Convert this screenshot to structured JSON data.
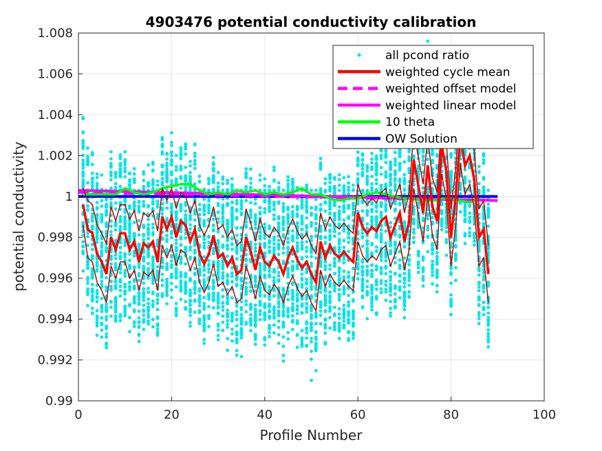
{
  "chart_data": {
    "type": "line",
    "title": "4903476 potential conductivity calibration",
    "xlabel": "Profile Number",
    "ylabel": "potential conductivity",
    "xlim": [
      0,
      100
    ],
    "ylim": [
      0.99,
      1.008
    ],
    "xticks": [
      0,
      20,
      40,
      60,
      80,
      100
    ],
    "xtick_labels": [
      "0",
      "20",
      "40",
      "60",
      "80",
      "100"
    ],
    "yticks": [
      0.99,
      0.992,
      0.994,
      0.996,
      0.998,
      1.0,
      1.002,
      1.004,
      1.006,
      1.008
    ],
    "ytick_labels": [
      "0.99",
      "0.992",
      "0.994",
      "0.996",
      "0.998",
      "1",
      "1.002",
      "1.004",
      "1.006",
      "1.008"
    ],
    "grid": true,
    "legend_position": "top-right",
    "colors": {
      "scatter": "#00e5e5",
      "cycle_mean": "#ff0000",
      "envelope": "#c00000",
      "offset_model": "#ff00ff",
      "linear_model": "#ff00ff",
      "theta": "#00ff00",
      "ow_solution": "#0000ff",
      "text": "#000000",
      "axes": "#262626",
      "grid": "#e6e6e6"
    },
    "legend": [
      {
        "key": "scatter",
        "label": "all pcond ratio",
        "style": "dot",
        "color": "#00e5e5"
      },
      {
        "key": "cycle_mean",
        "label": "weighted cycle mean",
        "style": "solid",
        "color": "#ff0000"
      },
      {
        "key": "offset_model",
        "label": "weighted offset model",
        "style": "dashed",
        "color": "#ff00ff"
      },
      {
        "key": "linear_model",
        "label": "weighted linear model",
        "style": "solid",
        "color": "#ff00ff"
      },
      {
        "key": "theta",
        "label": "10 theta",
        "style": "solid",
        "color": "#00ff00"
      },
      {
        "key": "ow_solution",
        "label": "OW Solution",
        "style": "solid",
        "color": "#0000ff"
      }
    ],
    "profiles": [
      1,
      2,
      3,
      4,
      5,
      6,
      7,
      8,
      9,
      10,
      11,
      12,
      13,
      14,
      15,
      16,
      17,
      18,
      19,
      20,
      21,
      22,
      23,
      24,
      25,
      26,
      27,
      28,
      29,
      30,
      31,
      32,
      33,
      34,
      35,
      36,
      37,
      38,
      39,
      40,
      41,
      42,
      43,
      44,
      45,
      46,
      47,
      48,
      49,
      50,
      51,
      52,
      53,
      54,
      55,
      56,
      57,
      58,
      59,
      60,
      61,
      62,
      63,
      64,
      65,
      66,
      67,
      68,
      69,
      70,
      71,
      72,
      73,
      74,
      75,
      76,
      77,
      78,
      79,
      80,
      81,
      82,
      83,
      84,
      85,
      86,
      87,
      88
    ],
    "series": [
      {
        "name": "weighted cycle mean",
        "values": [
          0.9996,
          0.9984,
          0.9982,
          0.9972,
          0.9968,
          0.9962,
          0.998,
          0.9974,
          0.9982,
          0.9982,
          0.9974,
          0.9978,
          0.9968,
          0.9977,
          0.9975,
          0.9978,
          0.9968,
          0.999,
          0.9984,
          0.999,
          0.998,
          0.9988,
          0.9986,
          0.9978,
          0.9984,
          0.9972,
          0.9967,
          0.9972,
          0.9981,
          0.997,
          0.9972,
          0.9966,
          0.997,
          0.9962,
          0.9964,
          0.998,
          0.9973,
          0.9964,
          0.9975,
          0.9968,
          0.9966,
          0.9971,
          0.9968,
          0.9962,
          0.997,
          0.9975,
          0.9969,
          0.9965,
          0.9968,
          0.9962,
          0.9958,
          0.9978,
          0.997,
          0.9976,
          0.9972,
          0.997,
          0.9973,
          0.997,
          0.9968,
          0.9992,
          0.9985,
          0.9982,
          0.9985,
          0.9983,
          0.9988,
          0.999,
          0.998,
          0.9986,
          0.9992,
          0.9978,
          0.9988,
          1.0018,
          1.0005,
          0.9992,
          1.0015,
          0.9995,
          0.9988,
          1.0025,
          1.0012,
          0.998,
          1.0,
          1.003,
          1.0015,
          1.002,
          1.0008,
          0.998,
          0.9984,
          0.9962
        ]
      },
      {
        "name": "cycle mean upper bound",
        "values": [
          1.0004,
          0.9998,
          0.9996,
          0.9986,
          0.9982,
          0.9977,
          0.9995,
          0.9988,
          0.9996,
          0.9996,
          0.9989,
          0.9993,
          0.9983,
          0.9992,
          0.999,
          0.9993,
          0.9983,
          1.0004,
          0.9998,
          1.0004,
          0.9994,
          1.0002,
          1.0,
          0.9992,
          0.9998,
          0.9986,
          0.9981,
          0.9986,
          0.9995,
          0.9984,
          0.9986,
          0.998,
          0.9984,
          0.9976,
          0.9978,
          0.9994,
          0.9987,
          0.9978,
          0.9989,
          0.9982,
          0.998,
          0.9985,
          0.9982,
          0.9976,
          0.9984,
          0.9989,
          0.9983,
          0.9979,
          0.9982,
          0.9976,
          0.9972,
          0.9992,
          0.9984,
          0.999,
          0.9986,
          0.9984,
          0.9987,
          0.9984,
          0.9982,
          1.0006,
          0.9999,
          0.9996,
          0.9999,
          0.9997,
          1.0002,
          1.0004,
          0.9994,
          1.0,
          1.0006,
          0.9992,
          1.0002,
          1.0032,
          1.0019,
          1.0006,
          1.0029,
          1.0009,
          1.0002,
          1.0039,
          1.0026,
          0.9994,
          1.0014,
          1.0044,
          1.0029,
          1.0034,
          1.0022,
          0.9994,
          0.9998,
          0.9976
        ]
      },
      {
        "name": "cycle mean lower bound",
        "values": [
          0.9986,
          0.997,
          0.9968,
          0.9958,
          0.9954,
          0.9948,
          0.9966,
          0.996,
          0.9968,
          0.9968,
          0.996,
          0.9964,
          0.9954,
          0.9963,
          0.9961,
          0.9964,
          0.9954,
          0.9976,
          0.997,
          0.9976,
          0.9966,
          0.9974,
          0.9972,
          0.9964,
          0.997,
          0.9958,
          0.9953,
          0.9958,
          0.9967,
          0.9956,
          0.9958,
          0.9952,
          0.9956,
          0.9948,
          0.995,
          0.9966,
          0.9959,
          0.995,
          0.9961,
          0.9954,
          0.9952,
          0.9957,
          0.9954,
          0.9948,
          0.9956,
          0.9961,
          0.9955,
          0.9951,
          0.9954,
          0.9948,
          0.9944,
          0.9964,
          0.9956,
          0.9962,
          0.9958,
          0.9956,
          0.9959,
          0.9956,
          0.9954,
          0.9978,
          0.9971,
          0.9968,
          0.9971,
          0.9969,
          0.9974,
          0.9976,
          0.9966,
          0.9972,
          0.9978,
          0.9964,
          0.9974,
          1.0004,
          0.9991,
          0.9978,
          1.0001,
          0.9981,
          0.9974,
          1.0011,
          0.9998,
          0.9966,
          0.9986,
          1.0016,
          1.0001,
          1.0006,
          0.9994,
          0.9966,
          0.997,
          0.9948
        ]
      },
      {
        "name": "10 theta",
        "x": [
          1,
          5,
          8,
          10,
          12,
          14,
          16,
          18,
          20,
          22,
          24,
          26,
          28,
          30,
          32,
          34,
          36,
          38,
          40,
          42,
          44,
          46,
          48,
          50,
          52,
          54,
          56,
          58,
          60,
          62,
          64,
          66,
          68,
          70,
          72,
          74,
          76,
          78,
          80,
          82,
          84,
          86
        ],
        "values": [
          1.0001,
          1.0001,
          1.0001,
          1.0004,
          1.0002,
          1.0001,
          1.0002,
          1.0004,
          1.0005,
          1.0006,
          1.0006,
          1.0003,
          1.0001,
          1.0002,
          1.0001,
          1.0003,
          1.0002,
          1.0003,
          1.0001,
          1.0002,
          1.0001,
          1.0002,
          1.0004,
          1.0001,
          1.0001,
          0.9999,
          0.9998,
          0.9999,
          0.9999,
          1.0001,
          1.0002,
          1.0001,
          1.0,
          0.9999,
          0.9999,
          0.9998,
          0.9998,
          0.9999,
          0.9999,
          0.9998,
          0.9997,
          0.9999
        ]
      }
    ],
    "scatter_summary": {
      "name": "all pcond ratio",
      "per_profile_range_note": "per-profile spread of approximately ±0.003 around the cycle mean",
      "max_point": [
        75,
        1.0076
      ],
      "min_point": [
        50,
        0.991
      ]
    },
    "offset_model": {
      "name": "weighted offset model",
      "x": [
        0,
        90
      ],
      "values": [
        1.0002,
        0.9998
      ]
    },
    "linear_model": {
      "name": "weighted linear model",
      "x": [
        0,
        90
      ],
      "values": [
        1.0003,
        0.9998
      ]
    },
    "ow_solution": {
      "name": "OW Solution",
      "x": [
        0,
        90
      ],
      "values": [
        1.0,
        1.0
      ]
    }
  }
}
